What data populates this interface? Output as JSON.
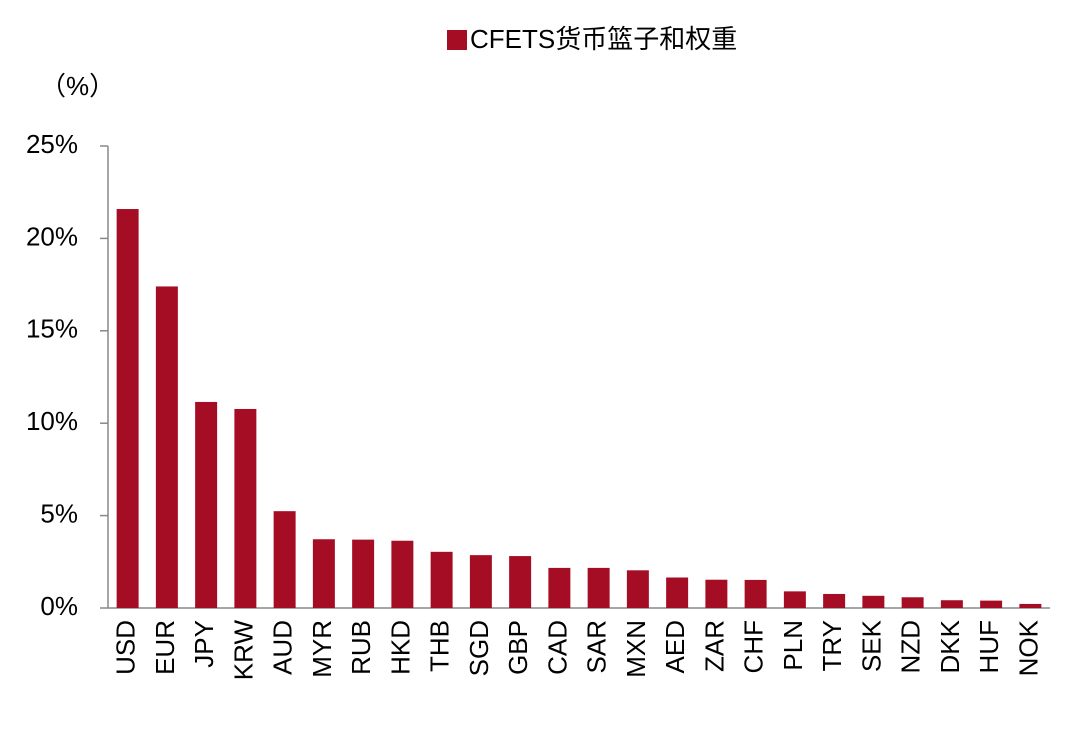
{
  "chart_data": {
    "type": "bar",
    "y_label": "（%）",
    "categories": [
      "USD",
      "EUR",
      "JPY",
      "KRW",
      "AUD",
      "MYR",
      "RUB",
      "HKD",
      "THB",
      "SGD",
      "GBP",
      "CAD",
      "SAR",
      "MXN",
      "AED",
      "ZAR",
      "CHF",
      "PLN",
      "TRY",
      "SEK",
      "NZD",
      "DKK",
      "HUF",
      "NOK"
    ],
    "series": [
      {
        "name": "CFETS货币篮子和权重",
        "color": "#a50d25",
        "values": [
          21.59,
          17.4,
          11.15,
          10.77,
          5.24,
          3.72,
          3.7,
          3.64,
          3.04,
          2.86,
          2.81,
          2.17,
          2.17,
          2.04,
          1.65,
          1.53,
          1.52,
          0.9,
          0.76,
          0.66,
          0.58,
          0.42,
          0.4,
          0.22
        ]
      }
    ],
    "ylim": [
      0,
      25
    ],
    "yticks": [
      {
        "value": 0,
        "label": "0%"
      },
      {
        "value": 5,
        "label": "5%"
      },
      {
        "value": 10,
        "label": "10%"
      },
      {
        "value": 15,
        "label": "15%"
      },
      {
        "value": 20,
        "label": "20%"
      },
      {
        "value": 25,
        "label": "25%"
      }
    ]
  }
}
